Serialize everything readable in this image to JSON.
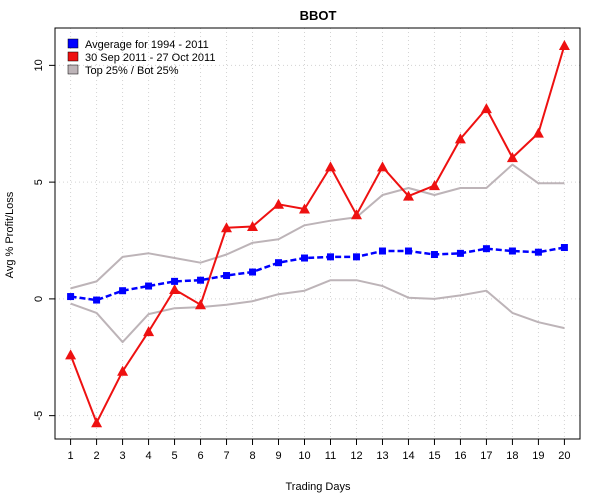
{
  "chart_data": {
    "type": "line",
    "title": "BBOT",
    "xlabel": "Trading Days",
    "ylabel": "Avg % Profit/Loss",
    "x": [
      1,
      2,
      3,
      4,
      5,
      6,
      7,
      8,
      9,
      10,
      11,
      12,
      13,
      14,
      15,
      16,
      17,
      18,
      19,
      20
    ],
    "x_ticks": [
      "1",
      "2",
      "3",
      "4",
      "5",
      "6",
      "7",
      "8",
      "9",
      "10",
      "11",
      "12",
      "13",
      "14",
      "15",
      "16",
      "17",
      "18",
      "19",
      "20"
    ],
    "xlim": [
      0.4,
      20.6
    ],
    "ylim": [
      -6.0,
      11.6
    ],
    "y_ticks": [
      -5,
      0,
      5,
      10
    ],
    "y_tick_labels": [
      "-5",
      "0",
      "5",
      "10"
    ],
    "grid": true,
    "legend_position": "top-left",
    "series": [
      {
        "name": "Avgerage for 1994 - 2011",
        "color": "#0000ff",
        "style": "dashed",
        "marker": "square",
        "values": [
          0.1,
          -0.05,
          0.35,
          0.55,
          0.75,
          0.8,
          1.0,
          1.15,
          1.55,
          1.75,
          1.8,
          1.8,
          2.05,
          2.05,
          1.9,
          1.95,
          2.15,
          2.05,
          2.0,
          2.2
        ]
      },
      {
        "name": "30 Sep 2011 - 27 Oct 2011",
        "color": "#ee1111",
        "style": "solid",
        "marker": "triangle",
        "values": [
          -2.4,
          -5.3,
          -3.1,
          -1.4,
          0.4,
          -0.25,
          3.05,
          3.1,
          4.05,
          3.85,
          5.65,
          3.6,
          5.65,
          4.4,
          4.85,
          6.85,
          8.15,
          6.05,
          7.1,
          10.85
        ]
      },
      {
        "name": "Top 25% / Bot 25%",
        "color": "#bdb4b8",
        "style": "solid",
        "marker": "none",
        "values": [
          0.45,
          0.75,
          1.8,
          1.95,
          1.75,
          1.55,
          1.9,
          2.4,
          2.55,
          3.15,
          3.35,
          3.5,
          4.45,
          4.75,
          4.45,
          4.75,
          4.75,
          5.75,
          4.95,
          4.95
        ]
      },
      {
        "name": "",
        "color": "#bdb4b8",
        "style": "solid",
        "marker": "none",
        "values": [
          -0.2,
          -0.6,
          -1.85,
          -0.65,
          -0.4,
          -0.35,
          -0.25,
          -0.1,
          0.2,
          0.35,
          0.8,
          0.8,
          0.55,
          0.05,
          0.0,
          0.15,
          0.35,
          -0.6,
          -1.0,
          -1.25
        ]
      }
    ]
  }
}
